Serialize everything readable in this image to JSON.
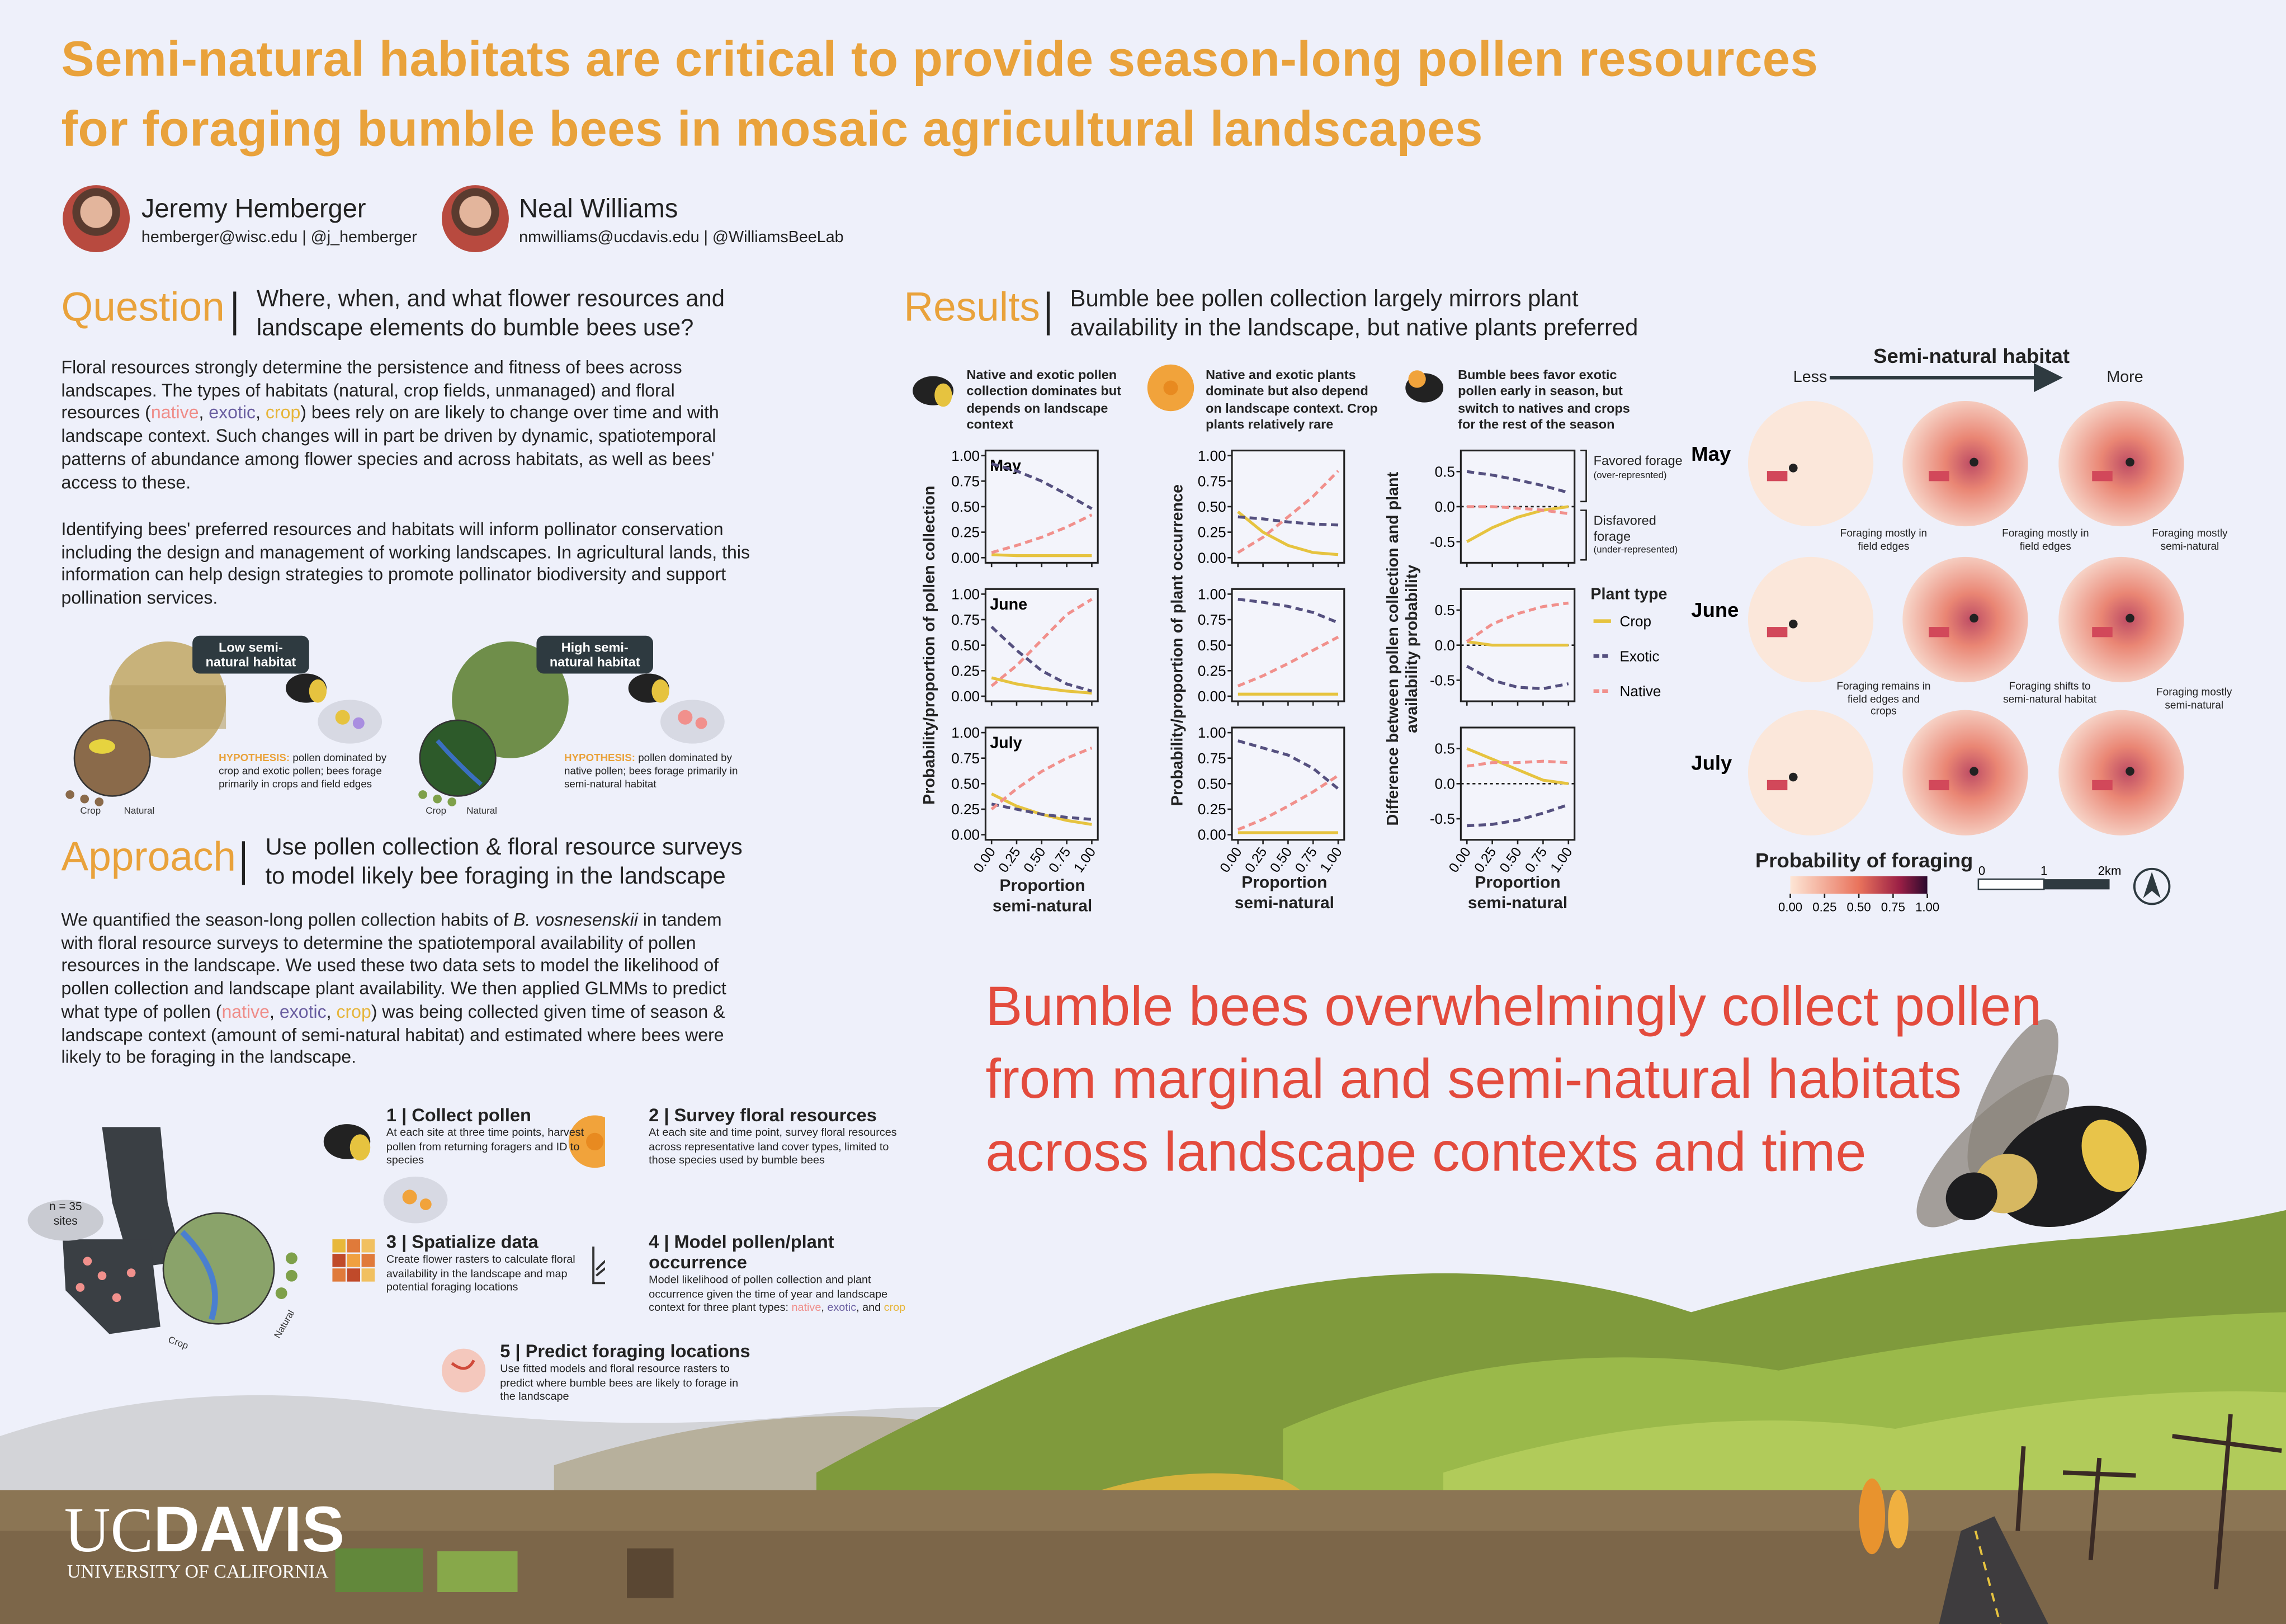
{
  "title_lines": [
    "Semi-natural habitats are critical to provide season-long pollen resources",
    "for foraging bumble bees in mosaic agricultural landscapes"
  ],
  "authors": [
    {
      "name": "Jeremy Hemberger",
      "contact": "hemberger@wisc.edu | @j_hemberger"
    },
    {
      "name": "Neal Williams",
      "contact": "nmwilliams@ucdavis.edu | @WilliamsBeeLab"
    }
  ],
  "question": {
    "heading": "Question",
    "subtitle": "Where, when, and what flower resources and landscape elements do bumble bees use?",
    "paragraph1": [
      "Floral resources strongly determine the persistence and fitness of bees across landscapes. The types of habitats (natural, crop fields, unmanaged) and floral resources (",
      "native",
      ", ",
      "exotic",
      ", ",
      "crop",
      ") bees rely on are likely to change over time and with landscape context. Such changes will in part be driven by dynamic, spatiotemporal patterns of abundance among flower species and across habitats, as well as bees' access to these."
    ],
    "paragraph2": "Identifying bees' preferred resources and habitats will inform pollinator conservation including the design and management of working landscapes. In agricultural lands, this information can help design strategies to promote pollinator biodiversity and support pollination services."
  },
  "hypotheses": [
    {
      "badge": "Low semi-natural habitat",
      "label": "HYPOTHESIS:",
      "text": " pollen dominated by crop and exotic pollen; bees forage primarily in crops and field edges",
      "gradient": [
        "Crop",
        "Natural"
      ]
    },
    {
      "badge": "High semi-natural habitat",
      "label": "HYPOTHESIS:",
      "text": " pollen dominated by native pollen; bees forage primarily in semi-natural habitat",
      "gradient": [
        "Crop",
        "Natural"
      ]
    }
  ],
  "approach": {
    "heading": "Approach",
    "subtitle": "Use pollen collection & floral resource surveys to model likely bee foraging in the landscape",
    "paragraph": [
      "We quantified the season-long pollen collection habits of ",
      "B. vosnesenskii",
      " in tandem with floral resource surveys to determine the spatiotemporal availability of pollen resources in the landscape. We used these two data sets to model the likelihood of pollen collection and landscape plant availability. We then applied GLMMs to predict what type of pollen (",
      "native",
      ", ",
      "exotic",
      ", ",
      "crop",
      ") was being collected given time of season & landscape context (amount of semi-natural habitat) and estimated where bees were likely to be foraging in the landscape."
    ]
  },
  "site_map": {
    "count": "n = 35",
    "unit": "sites",
    "gradient": [
      "Crop",
      "Natural"
    ]
  },
  "steps": [
    {
      "title": "1 | Collect pollen",
      "text": [
        "At each site at three time points, harvest pollen from returning foragers and ID to species"
      ]
    },
    {
      "title": "2 | Survey floral resources",
      "text": [
        "At each site and time point, survey floral resources across representative land cover types, limited to those species used by bumble bees"
      ]
    },
    {
      "title": "3 | Spatialize data",
      "text": [
        "Create flower rasters to calculate floral availability in the landscape and map potential foraging locations"
      ]
    },
    {
      "title": "4 | Model pollen/plant occurrence",
      "text": [
        "Model likelihood of pollen collection and plant occurrence given the time of year and landscape context for three plant types: ",
        "native",
        ", ",
        "exotic",
        ", and ",
        "crop"
      ]
    },
    {
      "title": "5 | Predict foraging locations",
      "text": [
        "Use fitted models and floral resource rasters to predict where bumble bees are likely to forage in the landscape"
      ]
    }
  ],
  "results": {
    "heading": "Results",
    "subtitle": "Bumble bee pollen collection largely mirrors plant availability in the landscape, but native plants preferred",
    "months": [
      "May",
      "June",
      "July"
    ],
    "x": [
      0,
      0.25,
      0.5,
      0.75,
      1
    ],
    "xlim": [
      -0.06,
      1.06
    ],
    "xticks": [
      {
        "value": 0,
        "label": "0.00"
      },
      {
        "value": 0.25,
        "label": "0.25"
      },
      {
        "value": 0.5,
        "label": "0.50"
      },
      {
        "value": 0.75,
        "label": "0.75"
      },
      {
        "value": 1,
        "label": "1.00"
      }
    ],
    "xlabel": "Proportion semi-natural",
    "series": [
      {
        "name": "Crop",
        "color": "#e6c33f",
        "dashed": false
      },
      {
        "name": "Exotic",
        "color": "#55507f",
        "dashed": true
      },
      {
        "name": "Native",
        "color": "#f1908c",
        "dashed": true
      }
    ],
    "legend_title": "Plant type",
    "columns": [
      {
        "caption": "Native and exotic pollen collection dominates but depends on landscape context",
        "ylabel": "Probability/proportion of pollen collection",
        "ylim": [
          -0.05,
          1.05
        ],
        "yticks": [
          {
            "value": 0,
            "label": "0.00"
          },
          {
            "value": 0.25,
            "label": "0.25"
          },
          {
            "value": 0.5,
            "label": "0.50"
          },
          {
            "value": 0.75,
            "label": "0.75"
          },
          {
            "value": 1,
            "label": "1.00"
          }
        ],
        "panels": [
          {
            "values": [
              [
                0.03,
                0.02,
                0.02,
                0.02,
                0.02
              ],
              [
                0.92,
                0.85,
                0.75,
                0.62,
                0.48
              ],
              [
                0.05,
                0.12,
                0.2,
                0.3,
                0.42
              ]
            ]
          },
          {
            "values": [
              [
                0.18,
                0.12,
                0.08,
                0.05,
                0.03
              ],
              [
                0.68,
                0.45,
                0.25,
                0.12,
                0.05
              ],
              [
                0.1,
                0.3,
                0.55,
                0.8,
                0.95
              ]
            ]
          },
          {
            "values": [
              [
                0.4,
                0.28,
                0.2,
                0.14,
                0.1
              ],
              [
                0.3,
                0.25,
                0.2,
                0.17,
                0.15
              ],
              [
                0.25,
                0.45,
                0.62,
                0.75,
                0.85
              ]
            ]
          }
        ]
      },
      {
        "caption": "Native and exotic plants dominate but also depend on landscape context. Crop plants relatively rare",
        "ylabel": "Probability/proportion of plant occurrence",
        "ylim": [
          -0.05,
          1.05
        ],
        "yticks": [
          {
            "value": 0,
            "label": "0.00"
          },
          {
            "value": 0.25,
            "label": "0.25"
          },
          {
            "value": 0.5,
            "label": "0.50"
          },
          {
            "value": 0.75,
            "label": "0.75"
          },
          {
            "value": 1,
            "label": "1.00"
          }
        ],
        "panels": [
          {
            "values": [
              [
                0.45,
                0.25,
                0.12,
                0.05,
                0.03
              ],
              [
                0.4,
                0.38,
                0.35,
                0.33,
                0.32
              ],
              [
                0.05,
                0.2,
                0.4,
                0.6,
                0.85
              ]
            ]
          },
          {
            "values": [
              [
                0.02,
                0.02,
                0.02,
                0.02,
                0.02
              ],
              [
                0.95,
                0.92,
                0.88,
                0.82,
                0.72
              ],
              [
                0.1,
                0.2,
                0.32,
                0.45,
                0.58
              ]
            ]
          },
          {
            "values": [
              [
                0.02,
                0.02,
                0.02,
                0.02,
                0.02
              ],
              [
                0.92,
                0.85,
                0.78,
                0.65,
                0.45
              ],
              [
                0.05,
                0.15,
                0.28,
                0.42,
                0.58
              ]
            ]
          }
        ]
      },
      {
        "caption": "Bumble bees favor exotic pollen early in season, but switch to natives and crops for the rest of the season",
        "ylabel": "Difference between pollen collection and plant availability probability",
        "ylim": [
          -0.8,
          0.8
        ],
        "yticks": [
          0.5,
          {
            "value": 0,
            "label": "0.0"
          },
          -0.5
        ],
        "panels": [
          {
            "values": [
              [
                -0.5,
                -0.3,
                -0.15,
                -0.05,
                0
              ],
              [
                0.5,
                0.45,
                0.38,
                0.3,
                0.2
              ],
              [
                0,
                0,
                -0.02,
                -0.05,
                -0.1
              ]
            ]
          },
          {
            "values": [
              [
                0.05,
                0,
                0,
                0,
                0
              ],
              [
                -0.3,
                -0.5,
                -0.6,
                -0.62,
                -0.55
              ],
              [
                0.05,
                0.3,
                0.45,
                0.55,
                0.6
              ]
            ]
          },
          {
            "values": [
              [
                0.5,
                0.35,
                0.2,
                0.05,
                0
              ],
              [
                -0.6,
                -0.58,
                -0.52,
                -0.42,
                -0.3
              ],
              [
                0.25,
                0.3,
                0.3,
                0.32,
                0.3
              ]
            ]
          }
        ],
        "annotations": [
          {
            "title": "Favored forage",
            "note": "(over-represnted)"
          },
          {
            "title": "Disfavored forage",
            "note": "(under-represented)"
          }
        ]
      }
    ]
  },
  "maps": {
    "header": "Semi-natural habitat",
    "less": "Less",
    "more": "More",
    "annotations": [
      "Foraging mostly in field edges",
      "Foraging mostly in field edges",
      "Foraging mostly semi-natural",
      "Foraging remains in field edges and crops",
      "Foraging shifts to semi-natural habitat",
      "Foraging mostly semi-natural"
    ],
    "colorbar_title": "Probability of foraging",
    "colorbar_ticks": [
      {
        "value": 0,
        "label": "0.00"
      },
      {
        "value": 0.25,
        "label": "0.25"
      },
      {
        "value": 0.5,
        "label": "0.50"
      },
      {
        "value": 0.75,
        "label": "0.75"
      },
      {
        "value": 1,
        "label": "1.00"
      }
    ],
    "scale_labels": [
      "0",
      "1",
      "2km"
    ]
  },
  "conclusion": [
    "Bumble bees overwhelmingly collect pollen",
    "from marginal and semi-natural habitats",
    "across landscape contexts and time"
  ],
  "logo": {
    "uc": "UC",
    "davis": "DAVIS",
    "sub": "UNIVERSITY OF CALIFORNIA"
  }
}
